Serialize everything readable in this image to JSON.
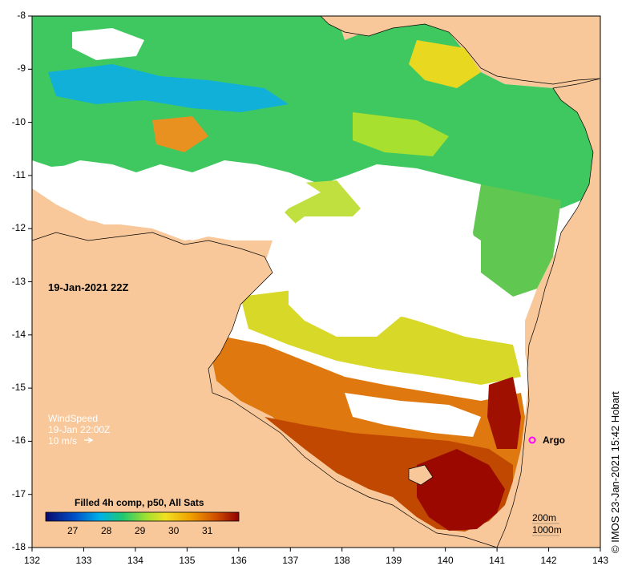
{
  "map": {
    "timestamp": "19-Jan-2021 22Z",
    "x_ticks": [
      "132",
      "133",
      "134",
      "135",
      "136",
      "137",
      "138",
      "139",
      "140",
      "141",
      "142",
      "143"
    ],
    "y_ticks": [
      "-8",
      "-9",
      "-10",
      "-11",
      "-12",
      "-13",
      "-14",
      "-15",
      "-16",
      "-17",
      "-18"
    ],
    "wind": {
      "title": "WindSpeed",
      "time": "19-Jan 22:00Z",
      "scale": "10 m/s"
    },
    "argo_label": "Argo",
    "colorbar": {
      "title": "Filled 4h comp, p50, All Sats",
      "ticks": [
        "27",
        "28",
        "29",
        "30",
        "31"
      ]
    },
    "depth_contours": [
      "200m",
      "1000m"
    ],
    "credit": "© IMOS 23-Jan-2021 15:42 Hobart",
    "colors": {
      "land": "#f8c89a",
      "no_data": "#ffffff",
      "argo_marker": "#ff00ff",
      "colorbar_stops": [
        "#0a0a6e",
        "#0050c8",
        "#00b0e8",
        "#20c870",
        "#a0e030",
        "#f0e020",
        "#f0a000",
        "#d05000",
        "#900000"
      ]
    }
  }
}
